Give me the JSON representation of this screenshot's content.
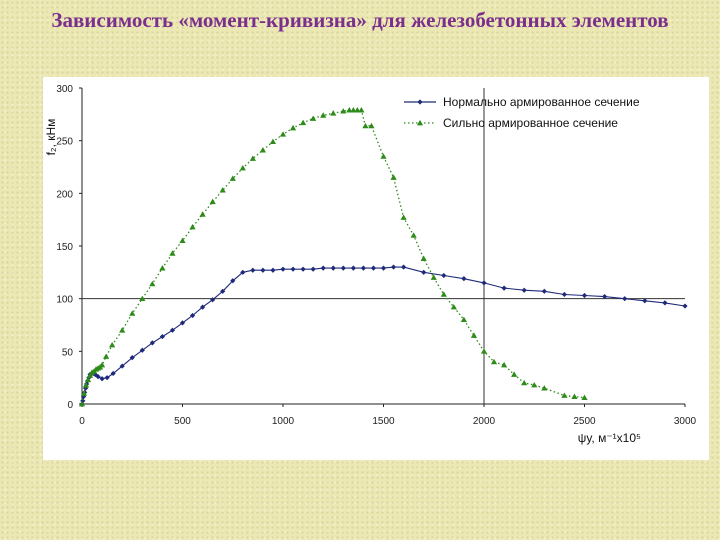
{
  "slide": {
    "title": "Зависимость «момент-кривизна» для железобетонных элементов"
  },
  "chart_data": {
    "type": "line",
    "xlabel": "ψy, м⁻¹x10⁵",
    "ylabel": "f₂, кНм",
    "xlim": [
      0,
      3000
    ],
    "ylim": [
      0,
      300
    ],
    "xticks": [
      0,
      500,
      1000,
      1500,
      2000,
      2500,
      3000
    ],
    "yticks": [
      0,
      50,
      100,
      150,
      200,
      250,
      300
    ],
    "grid": false,
    "reference_lines": {
      "x": 2000,
      "y": 100
    },
    "legend_position": "top-right",
    "series": [
      {
        "name": "Нормально армированное сечение",
        "color": "#1f2a7a",
        "line_style": "solid",
        "marker": "diamond",
        "points": [
          [
            0,
            0
          ],
          [
            4,
            3
          ],
          [
            8,
            7
          ],
          [
            13,
            11
          ],
          [
            18,
            15
          ],
          [
            23,
            19
          ],
          [
            28,
            22
          ],
          [
            34,
            25
          ],
          [
            40,
            28
          ],
          [
            48,
            29
          ],
          [
            56,
            29
          ],
          [
            66,
            28
          ],
          [
            80,
            26
          ],
          [
            100,
            24
          ],
          [
            125,
            25
          ],
          [
            155,
            29
          ],
          [
            200,
            36
          ],
          [
            250,
            44
          ],
          [
            300,
            51
          ],
          [
            350,
            58
          ],
          [
            400,
            64
          ],
          [
            450,
            70
          ],
          [
            500,
            77
          ],
          [
            550,
            84
          ],
          [
            600,
            92
          ],
          [
            650,
            99
          ],
          [
            700,
            107
          ],
          [
            750,
            117
          ],
          [
            800,
            125
          ],
          [
            850,
            127
          ],
          [
            900,
            127
          ],
          [
            950,
            127
          ],
          [
            1000,
            128
          ],
          [
            1050,
            128
          ],
          [
            1100,
            128
          ],
          [
            1150,
            128
          ],
          [
            1200,
            129
          ],
          [
            1250,
            129
          ],
          [
            1300,
            129
          ],
          [
            1350,
            129
          ],
          [
            1400,
            129
          ],
          [
            1450,
            129
          ],
          [
            1500,
            129
          ],
          [
            1550,
            130
          ],
          [
            1600,
            130
          ],
          [
            1700,
            125
          ],
          [
            1800,
            122
          ],
          [
            1900,
            119
          ],
          [
            2000,
            115
          ],
          [
            2100,
            110
          ],
          [
            2200,
            108
          ],
          [
            2300,
            107
          ],
          [
            2400,
            104
          ],
          [
            2500,
            103
          ],
          [
            2600,
            102
          ],
          [
            2700,
            100
          ],
          [
            2800,
            98
          ],
          [
            2900,
            96
          ],
          [
            3000,
            93
          ]
        ]
      },
      {
        "name": "Сильно армированное сечение",
        "color": "#2e8b1a",
        "line_style": "dotted",
        "marker": "triangle",
        "points": [
          [
            0,
            0
          ],
          [
            10,
            10
          ],
          [
            20,
            18
          ],
          [
            30,
            23
          ],
          [
            40,
            27
          ],
          [
            50,
            30
          ],
          [
            60,
            31
          ],
          [
            70,
            33
          ],
          [
            80,
            34
          ],
          [
            90,
            35
          ],
          [
            100,
            37
          ],
          [
            120,
            45
          ],
          [
            150,
            56
          ],
          [
            200,
            70
          ],
          [
            250,
            86
          ],
          [
            300,
            100
          ],
          [
            350,
            114
          ],
          [
            400,
            129
          ],
          [
            450,
            143
          ],
          [
            500,
            155
          ],
          [
            550,
            168
          ],
          [
            600,
            180
          ],
          [
            650,
            192
          ],
          [
            700,
            203
          ],
          [
            750,
            214
          ],
          [
            800,
            224
          ],
          [
            850,
            233
          ],
          [
            900,
            241
          ],
          [
            950,
            249
          ],
          [
            1000,
            256
          ],
          [
            1050,
            262
          ],
          [
            1100,
            267
          ],
          [
            1150,
            271
          ],
          [
            1200,
            274
          ],
          [
            1250,
            276
          ],
          [
            1300,
            278
          ],
          [
            1330,
            279
          ],
          [
            1350,
            279
          ],
          [
            1370,
            279
          ],
          [
            1390,
            279
          ],
          [
            1410,
            264
          ],
          [
            1440,
            264
          ],
          [
            1500,
            235
          ],
          [
            1550,
            215
          ],
          [
            1600,
            177
          ],
          [
            1650,
            160
          ],
          [
            1700,
            138
          ],
          [
            1750,
            120
          ],
          [
            1800,
            104
          ],
          [
            1850,
            92
          ],
          [
            1900,
            80
          ],
          [
            1950,
            65
          ],
          [
            2000,
            50
          ],
          [
            2050,
            40
          ],
          [
            2100,
            37
          ],
          [
            2150,
            28
          ],
          [
            2200,
            20
          ],
          [
            2250,
            18
          ],
          [
            2300,
            15
          ],
          [
            2400,
            8
          ],
          [
            2450,
            7
          ],
          [
            2500,
            6
          ]
        ]
      }
    ]
  }
}
